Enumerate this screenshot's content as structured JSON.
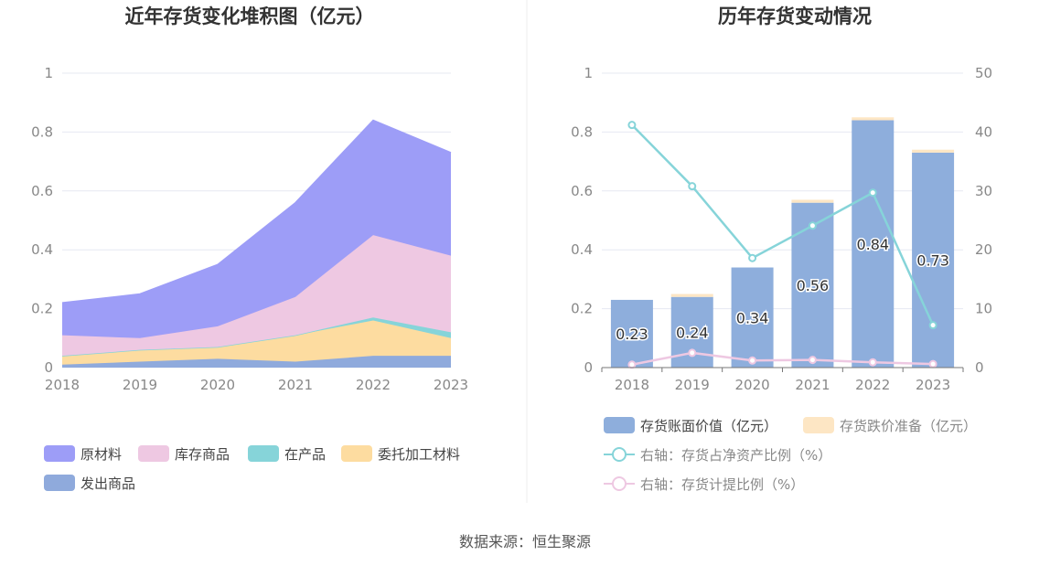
{
  "chart_data": [
    {
      "type": "area",
      "stacked": true,
      "title": "近年存货变化堆积图（亿元）",
      "categories": [
        "2018",
        "2019",
        "2020",
        "2021",
        "2022",
        "2023"
      ],
      "ylim": [
        0,
        1
      ],
      "yticks": [
        "0",
        "0.2",
        "0.4",
        "0.6",
        "0.8",
        "1"
      ],
      "legend_position": "bottom-left",
      "series": [
        {
          "name": "发出商品",
          "color": "#8faadc",
          "values": [
            0.01,
            0.02,
            0.03,
            0.02,
            0.04,
            0.04
          ]
        },
        {
          "name": "委托加工材料",
          "color": "#fddca0",
          "values": [
            0.03,
            0.04,
            0.04,
            0.09,
            0.12,
            0.06
          ]
        },
        {
          "name": "在产品",
          "color": "#86d4d9",
          "values": [
            0.0,
            0.0,
            0.0,
            0.0,
            0.01,
            0.02
          ]
        },
        {
          "name": "库存商品",
          "color": "#eec8e2",
          "values": [
            0.07,
            0.04,
            0.07,
            0.13,
            0.28,
            0.26
          ]
        },
        {
          "name": "原材料",
          "color": "#9d9df7",
          "values": [
            0.11,
            0.15,
            0.21,
            0.32,
            0.39,
            0.35
          ]
        }
      ],
      "legend_order": [
        "原材料",
        "库存商品",
        "在产品",
        "委托加工材料",
        "发出商品"
      ]
    },
    {
      "type": "bar",
      "title": "历年存货变动情况",
      "categories": [
        "2018",
        "2019",
        "2020",
        "2021",
        "2022",
        "2023"
      ],
      "ylim": [
        0,
        1
      ],
      "y2lim": [
        0,
        50
      ],
      "yticks": [
        "0",
        "0.2",
        "0.4",
        "0.6",
        "0.8",
        "1"
      ],
      "y2ticks": [
        "0",
        "10",
        "20",
        "30",
        "40",
        "50"
      ],
      "legend_position": "bottom",
      "series": [
        {
          "name": "存货账面价值（亿元）",
          "type": "bar",
          "color": "#8eaedc",
          "values": [
            0.23,
            0.24,
            0.34,
            0.56,
            0.84,
            0.73
          ],
          "labels": [
            "0.23",
            "0.24",
            "0.34",
            "0.56",
            "0.84",
            "0.73"
          ]
        },
        {
          "name": "存货跌价准备（亿元）",
          "type": "bar",
          "color": "#fde6c4",
          "values": [
            0.0,
            0.01,
            0.0,
            0.01,
            0.01,
            0.01
          ]
        },
        {
          "name": "右轴：存货占净资产比例（%）",
          "type": "line",
          "axis": "right",
          "color": "#86d4d9",
          "values": [
            41.2,
            30.8,
            18.6,
            24.1,
            29.7,
            7.2
          ]
        },
        {
          "name": "右轴：存货计提比例（%）",
          "type": "line",
          "axis": "right",
          "color": "#eec8e2",
          "values": [
            0.5,
            2.5,
            1.2,
            1.3,
            0.9,
            0.6
          ]
        }
      ]
    }
  ],
  "source": "数据来源：恒生聚源"
}
